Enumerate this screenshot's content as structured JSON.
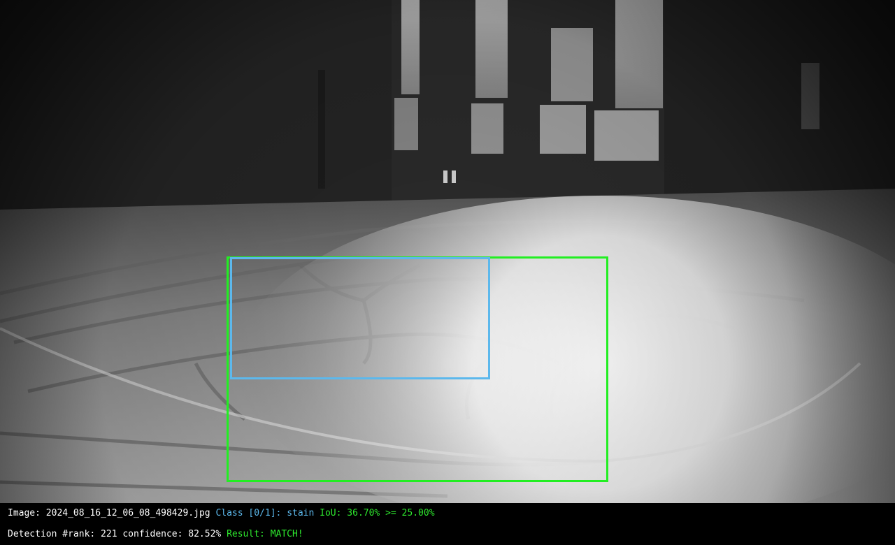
{
  "colors": {
    "ground_truth_box": "#22ee22",
    "detection_box": "#5cb8ec",
    "text_white": "#ffffff",
    "text_blue": "#5cb8ec",
    "text_green": "#2ee82e",
    "background": "#000000"
  },
  "status": {
    "line1": {
      "image_label": "Image:",
      "image_name": "2024_08_16_12_06_08_498429.jpg",
      "class_label": "Class [0/1]:",
      "class_name": "stain",
      "iou_text": "IoU: 36.70% >= 25.00%"
    },
    "line2": {
      "detection_text": "Detection #rank: 221 confidence: 82.52%",
      "result_text": "Result: MATCH!"
    }
  }
}
